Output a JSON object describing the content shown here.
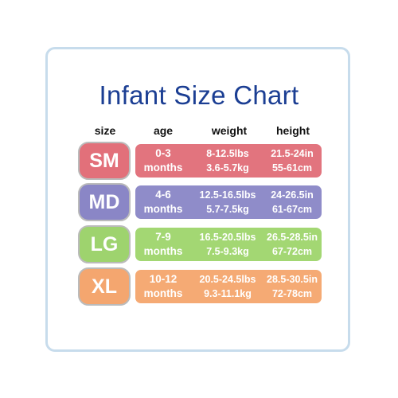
{
  "title": "Infant Size Chart",
  "headers": {
    "size": "size",
    "age": "age",
    "weight": "weight",
    "height": "height"
  },
  "rows": [
    {
      "size": "SM",
      "age_range": "0-3",
      "age_unit": "months",
      "weight_lbs": "8-12.5lbs",
      "weight_kg": "3.6-5.7kg",
      "height_in": "21.5-24in",
      "height_cm": "55-61cm",
      "badge_color": "#e2707a",
      "bar_color": "#e2747e"
    },
    {
      "size": "MD",
      "age_range": "4-6",
      "age_unit": "months",
      "weight_lbs": "12.5-16.5lbs",
      "weight_kg": "5.7-7.5kg",
      "height_in": "24-26.5in",
      "height_cm": "61-67cm",
      "badge_color": "#8a86c6",
      "bar_color": "#8f8cc9"
    },
    {
      "size": "LG",
      "age_range": "7-9",
      "age_unit": "months",
      "weight_lbs": "16.5-20.5lbs",
      "weight_kg": "7.5-9.3kg",
      "height_in": "26.5-28.5in",
      "height_cm": "67-72cm",
      "badge_color": "#9ed36e",
      "bar_color": "#a3d773"
    },
    {
      "size": "XL",
      "age_range": "10-12",
      "age_unit": "months",
      "weight_lbs": "20.5-24.5lbs",
      "weight_kg": "9.3-11.1kg",
      "height_in": "28.5-30.5in",
      "height_cm": "72-78cm",
      "badge_color": "#f4a66f",
      "bar_color": "#f5aa74"
    }
  ],
  "colors": {
    "title": "#1b3e93",
    "card_border": "#c7dcec"
  }
}
